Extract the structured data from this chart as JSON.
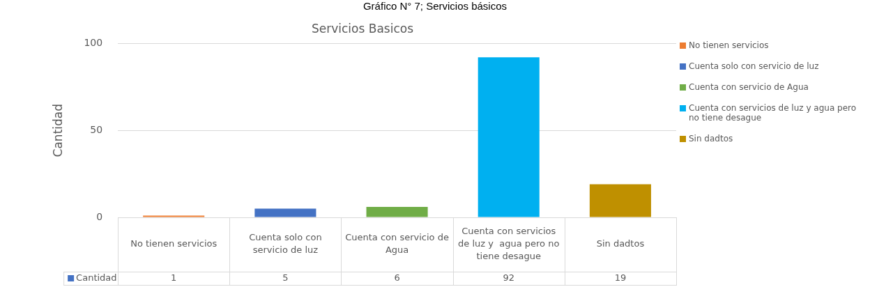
{
  "chart_data": {
    "type": "bar",
    "title": "Gráfico N° 7; Servicios básicos",
    "subtitle": "Servicios Basicos",
    "ylabel": "Cantidad",
    "categories": [
      "No tienen servicios",
      "Cuenta solo con servicio de luz",
      "Cuenta con servicio de Agua",
      "Cuenta con servicios de luz y  agua pero no tiene desague",
      "Sin dadtos"
    ],
    "series": [
      {
        "name": "Cantidad",
        "color": "#4472c4",
        "colors": [
          "#ed7d31",
          "#4472c4",
          "#70ad47",
          "#00b0f0",
          "#bf9000"
        ],
        "values": [
          1,
          5,
          6,
          92,
          19
        ]
      }
    ],
    "ylim": [
      0,
      100
    ],
    "yticks": [
      0,
      50,
      100
    ],
    "grid": "y",
    "legend": "bottom left",
    "data_labels": true
  }
}
